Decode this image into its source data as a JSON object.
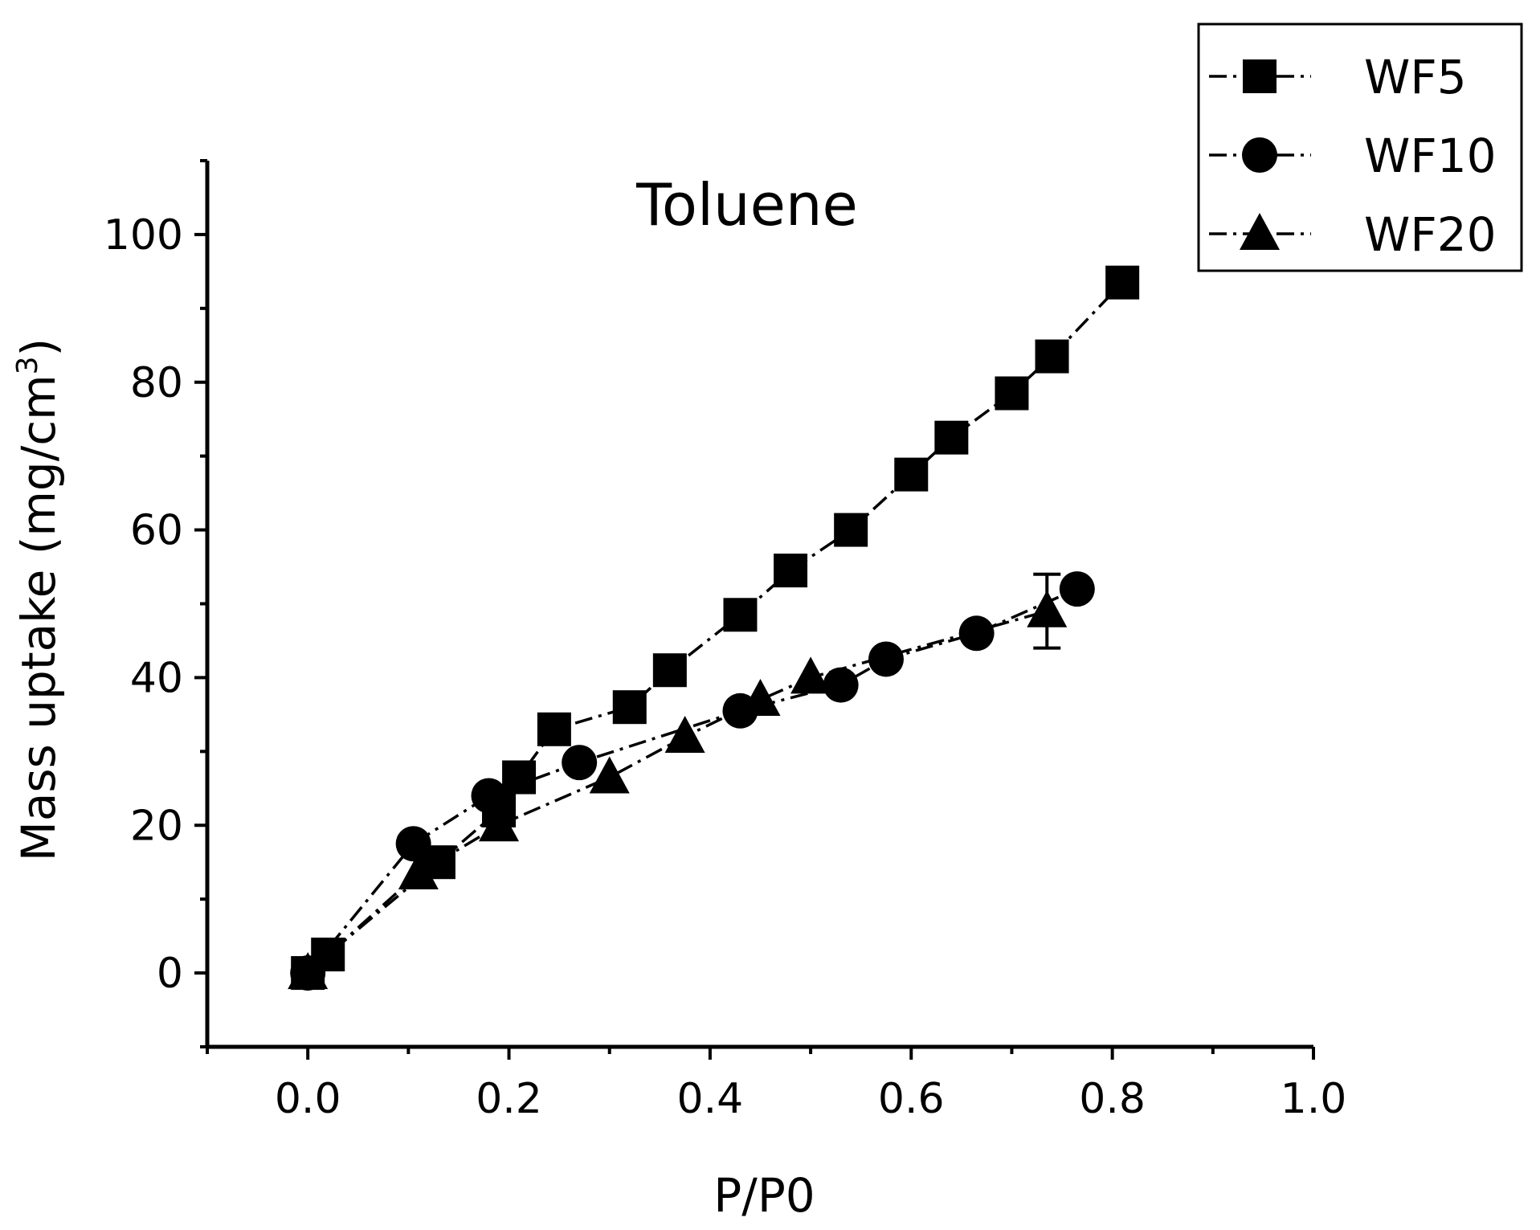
{
  "chart_data": {
    "type": "line",
    "title": "Toluene",
    "xlabel": "P/P0",
    "ylabel": "Mass uptake (mg/cm",
    "ylabel_sup": "3",
    "ylabel_close": ")",
    "xlim": [
      -0.1,
      1.0
    ],
    "ylim": [
      -10,
      110
    ],
    "xticks": [
      0.0,
      0.2,
      0.4,
      0.6,
      0.8,
      1.0
    ],
    "xtick_labels": [
      "0.0",
      "0.2",
      "0.4",
      "0.6",
      "0.8",
      "1.0"
    ],
    "yticks": [
      0,
      20,
      40,
      60,
      80,
      100
    ],
    "ytick_labels": [
      "0",
      "20",
      "40",
      "60",
      "80",
      "100"
    ],
    "legend_position": "top-right",
    "series": [
      {
        "name": "WF5",
        "marker": "square",
        "x": [
          0.0,
          0.02,
          0.13,
          0.19,
          0.21,
          0.245,
          0.32,
          0.36,
          0.43,
          0.48,
          0.54,
          0.6,
          0.64,
          0.7,
          0.74,
          0.81
        ],
        "y": [
          0.0,
          2.5,
          15,
          22,
          26.5,
          33,
          36,
          41,
          48.5,
          54.5,
          60,
          67.5,
          72.5,
          78.5,
          83.5,
          93.5
        ]
      },
      {
        "name": "WF10",
        "marker": "circle",
        "x": [
          0.0,
          0.105,
          0.18,
          0.27,
          0.43,
          0.53,
          0.575,
          0.665,
          0.765
        ],
        "y": [
          0.0,
          17.5,
          24,
          28.5,
          35.5,
          39,
          42.5,
          46,
          52
        ]
      },
      {
        "name": "WF20",
        "marker": "triangle",
        "x": [
          0.0,
          0.11,
          0.19,
          0.3,
          0.375,
          0.45,
          0.5,
          0.735
        ],
        "y": [
          0.0,
          13.5,
          20,
          26.5,
          32,
          37,
          40,
          49
        ],
        "errors": [
          null,
          null,
          null,
          null,
          null,
          null,
          null,
          5
        ]
      }
    ]
  }
}
